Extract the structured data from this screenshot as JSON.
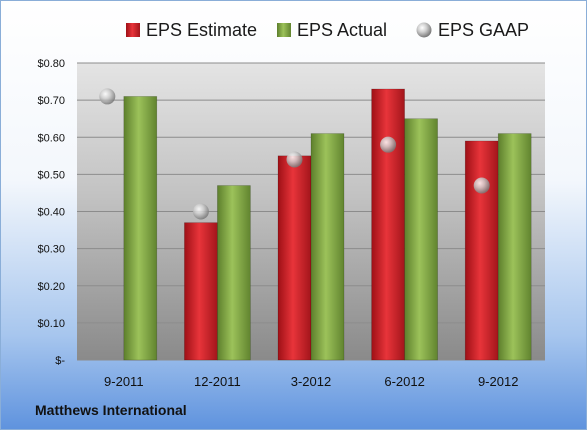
{
  "footer": {
    "company": "Matthews International"
  },
  "chart_data": {
    "type": "bar",
    "categories": [
      "9-2011",
      "12-2011",
      "3-2012",
      "6-2012",
      "9-2012"
    ],
    "series": [
      {
        "name": "EPS Estimate",
        "kind": "bar",
        "color": "#cc1f26",
        "values": [
          null,
          0.37,
          0.55,
          0.73,
          0.59
        ]
      },
      {
        "name": "EPS Actual",
        "kind": "bar",
        "color": "#7fa545",
        "values": [
          0.71,
          0.47,
          0.61,
          0.65,
          0.61
        ]
      },
      {
        "name": "EPS GAAP",
        "kind": "marker",
        "color": "#b8b8b8",
        "values": [
          0.71,
          0.4,
          0.54,
          0.58,
          0.47
        ]
      }
    ],
    "ylim": [
      0,
      0.8
    ],
    "yticks": [
      {
        "value": 0.0,
        "label": "$-"
      },
      {
        "value": 0.1,
        "label": "$0.10"
      },
      {
        "value": 0.2,
        "label": "$0.20"
      },
      {
        "value": 0.3,
        "label": "$0.30"
      },
      {
        "value": 0.4,
        "label": "$0.40"
      },
      {
        "value": 0.5,
        "label": "$0.50"
      },
      {
        "value": 0.6,
        "label": "$0.60"
      },
      {
        "value": 0.7,
        "label": "$0.70"
      },
      {
        "value": 0.8,
        "label": "$0.80"
      }
    ],
    "grid": true,
    "legend_position": "top"
  }
}
